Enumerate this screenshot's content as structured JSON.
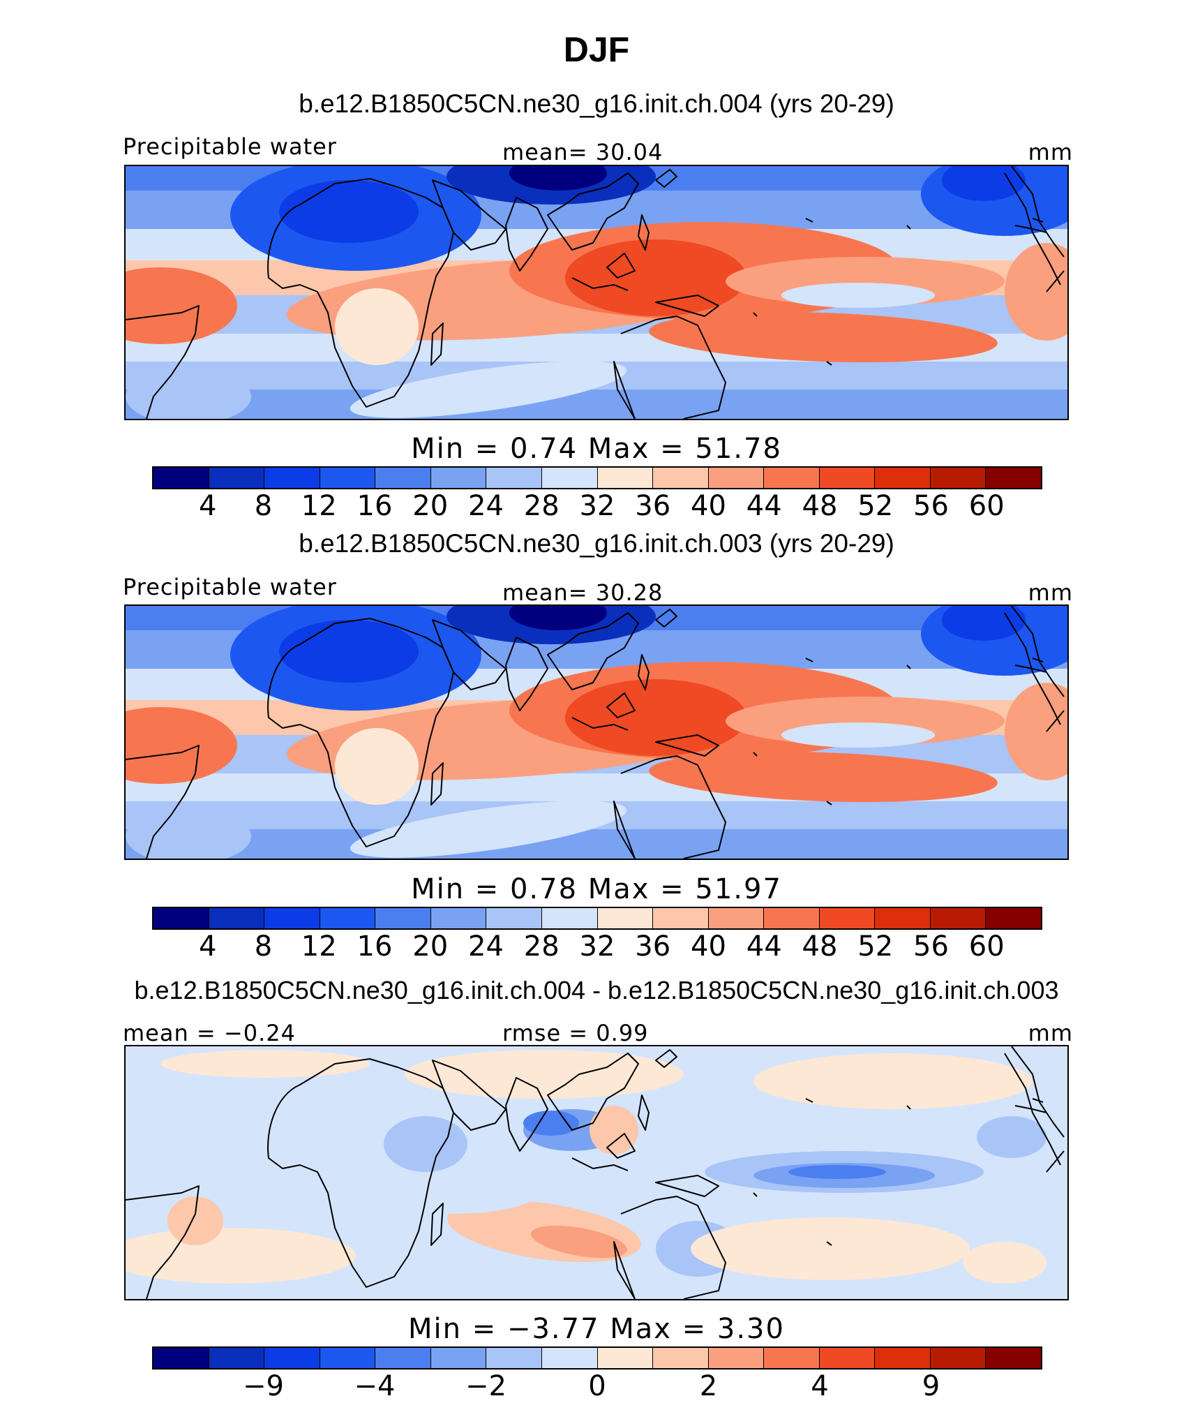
{
  "figure": {
    "title": "DJF"
  },
  "colorbar_colors": [
    "#00007f",
    "#0a2fbd",
    "#0c3ce5",
    "#1c58f0",
    "#4b7ff0",
    "#7aa2f3",
    "#a9c4f7",
    "#d4e4fb",
    "#fde8d6",
    "#fcc7ab",
    "#fba07e",
    "#f77650",
    "#ef4a23",
    "#dd2f09",
    "#b71c03",
    "#870000"
  ],
  "panels": [
    {
      "title": "b.e12.B1850C5CN.ne30_g16.init.ch.004 (yrs 20-29)",
      "left_label": "Precipitable  water",
      "center_label": "mean=   30.04",
      "units": "mm",
      "stats": "Min  =      0.74  Max  =     51.78",
      "tick_labels": [
        "4",
        "8",
        "12",
        "16",
        "20",
        "24",
        "28",
        "32",
        "36",
        "40",
        "44",
        "48",
        "52",
        "56",
        "60"
      ],
      "field": "mean"
    },
    {
      "title": "b.e12.B1850C5CN.ne30_g16.init.ch.003 (yrs 20-29)",
      "left_label": "Precipitable  water",
      "center_label": "mean=   30.28",
      "units": "mm",
      "stats": "Min  =      0.78  Max  =     51.97",
      "tick_labels": [
        "4",
        "8",
        "12",
        "16",
        "20",
        "24",
        "28",
        "32",
        "36",
        "40",
        "44",
        "48",
        "52",
        "56",
        "60"
      ],
      "field": "mean"
    },
    {
      "title": "b.e12.B1850C5CN.ne30_g16.init.ch.004 - b.e12.B1850C5CN.ne30_g16.init.ch.003",
      "left_label": "mean  =   −0.24",
      "center_label": "rmse  =     0.99",
      "units": "mm",
      "stats": "Min  =   −3.77  Max  =      3.30",
      "tick_labels": [
        "−9",
        "−4",
        "−2",
        "0",
        "2",
        "4",
        "9"
      ],
      "field": "diff"
    }
  ]
}
